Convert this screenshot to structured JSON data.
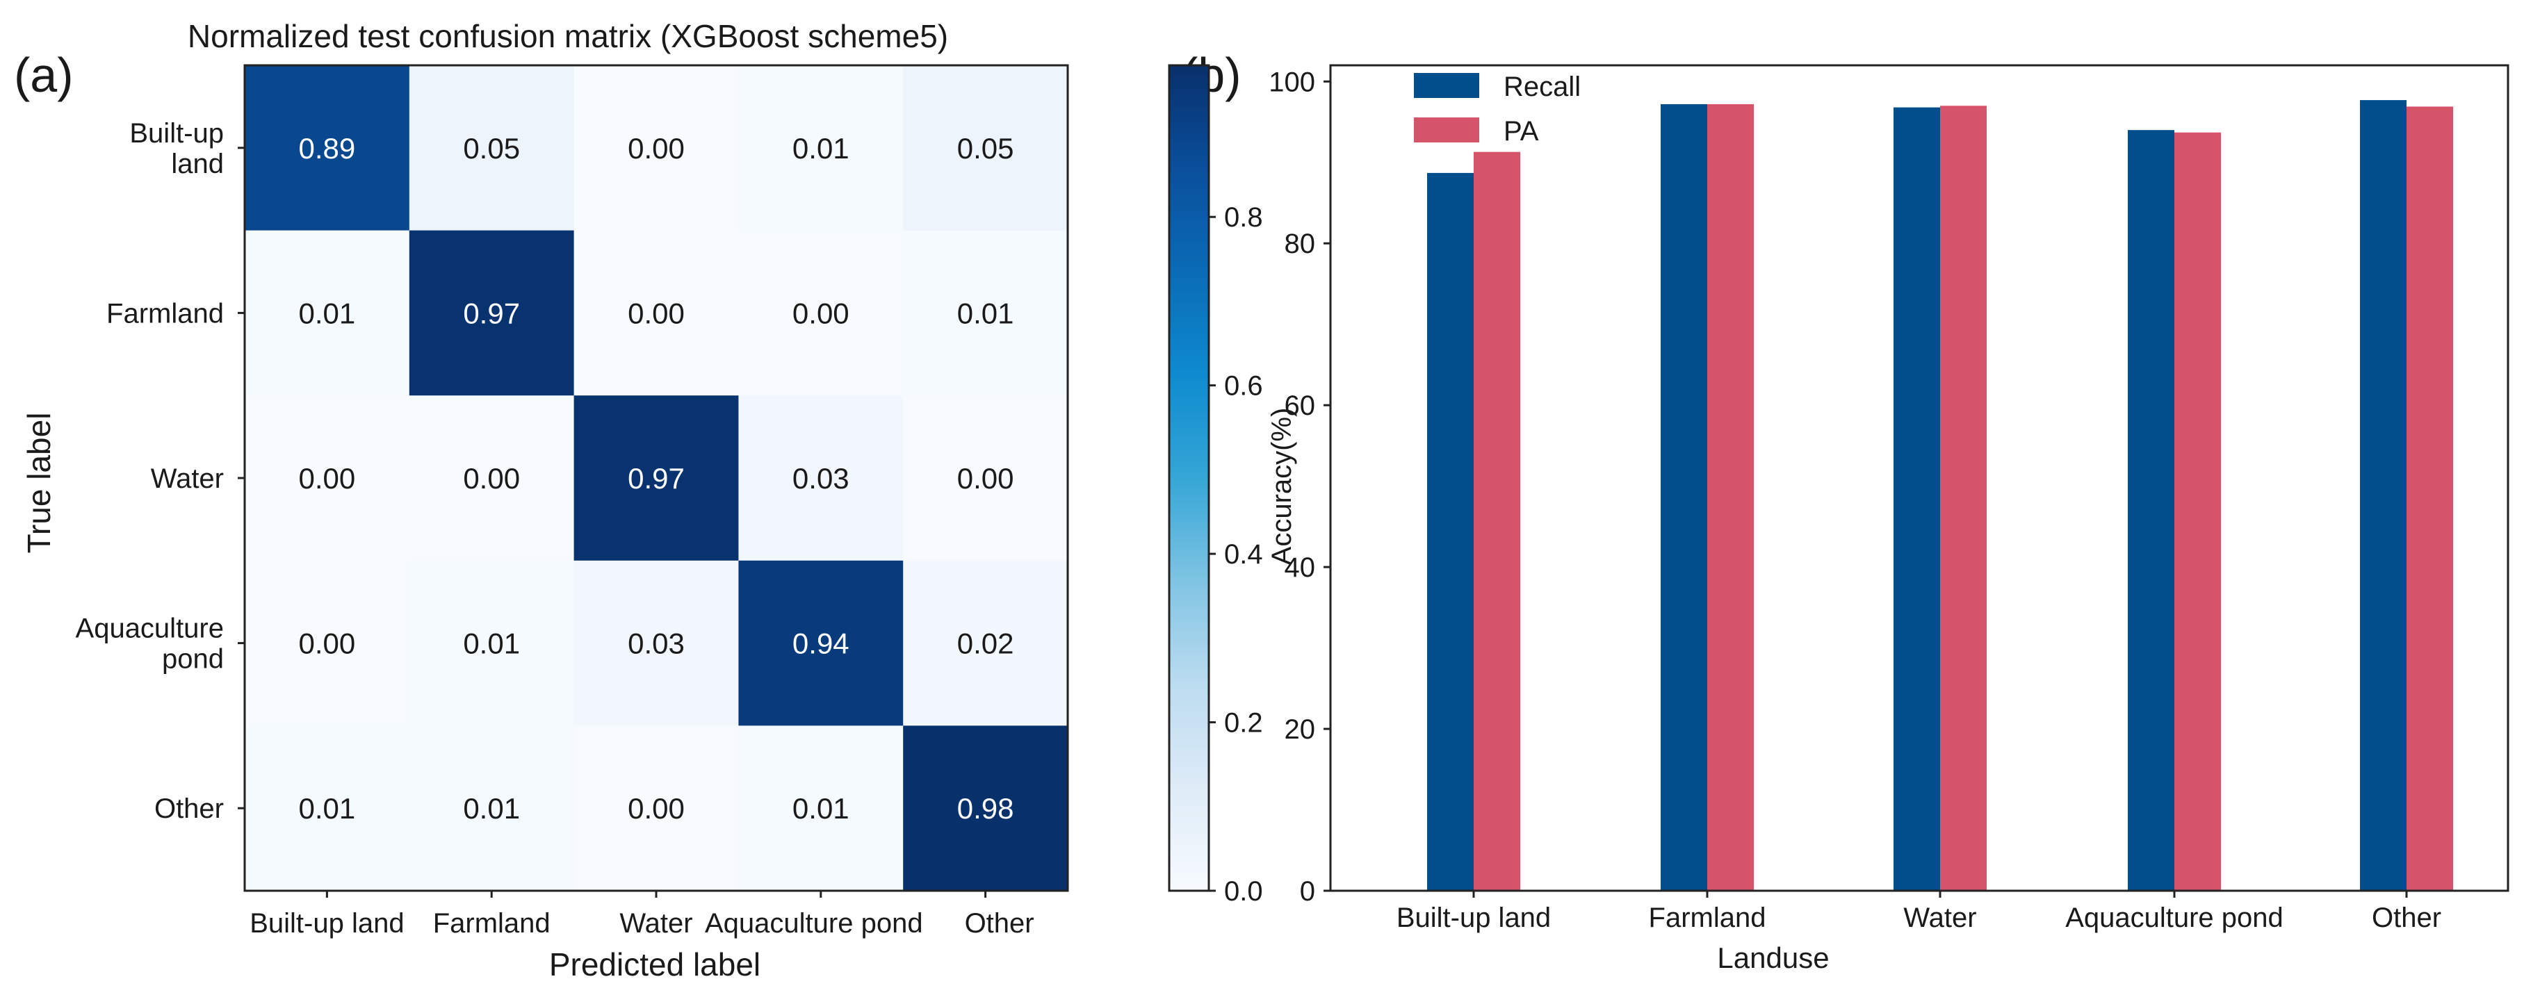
{
  "panel_a": {
    "label": "(a)",
    "colorbar": {
      "ticks": [
        "0.0",
        "0.2",
        "0.4",
        "0.6",
        "0.8"
      ],
      "colors": [
        "#f7fbff",
        "#deebf7",
        "#bcdcf0",
        "#7fc4e3",
        "#35a6d6",
        "#0e8bcf",
        "#0a6bb6",
        "#0a4f9c",
        "#08306b"
      ]
    }
  },
  "panel_b": {
    "label": "(b)",
    "colors": {
      "Recall": "#004e8c",
      "PA": "#d6546a"
    }
  },
  "chart_data": [
    {
      "type": "heatmap",
      "title": "Normalized test confusion matrix (XGBoost scheme5)",
      "xlabel": "Predicted label",
      "ylabel": "True label",
      "x_categories": [
        "Built-up land",
        "Farmland",
        "Water",
        "Aquaculture pond",
        "Other"
      ],
      "y_categories": [
        [
          "Built-up",
          "land"
        ],
        [
          "Farmland"
        ],
        [
          "Water"
        ],
        [
          "Aquaculture",
          "pond"
        ],
        [
          "Other"
        ]
      ],
      "values": [
        [
          0.89,
          0.05,
          0.0,
          0.01,
          0.05
        ],
        [
          0.01,
          0.97,
          0.0,
          0.0,
          0.01
        ],
        [
          0.0,
          0.0,
          0.97,
          0.03,
          0.0
        ],
        [
          0.0,
          0.01,
          0.03,
          0.94,
          0.02
        ],
        [
          0.01,
          0.01,
          0.0,
          0.01,
          0.98
        ]
      ],
      "vlim": [
        0,
        0.98
      ],
      "colorbar_label": ""
    },
    {
      "type": "bar",
      "title": "",
      "xlabel": "Landuse",
      "ylabel": "Accuracy(%)",
      "categories": [
        "Built-up land",
        "Farmland",
        "Water",
        "Aquaculture pond",
        "Other"
      ],
      "series": [
        {
          "name": "Recall",
          "values": [
            88.7,
            97.2,
            96.8,
            94.0,
            97.7
          ]
        },
        {
          "name": "PA",
          "values": [
            91.3,
            97.2,
            97.0,
            93.7,
            96.9
          ]
        }
      ],
      "ylim": [
        0,
        100
      ],
      "yticks": [
        "0",
        "20",
        "40",
        "60",
        "80",
        "100"
      ],
      "legend": "top-left",
      "grid": false
    }
  ]
}
